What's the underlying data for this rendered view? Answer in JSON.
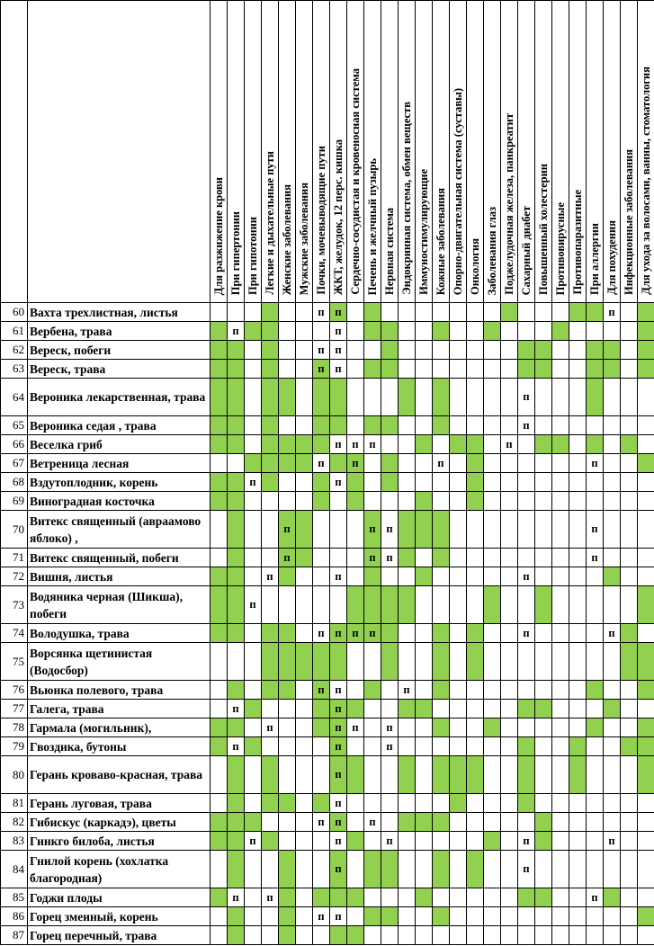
{
  "table": {
    "green_color": "#92D050",
    "mark_legend": {
      "g": "green fill",
      "p": "п on white",
      "pg": "п on green fill"
    },
    "p_symbol": "п",
    "columns": [
      "Для разжижение крови",
      "При гипертонии",
      "При гипотонии",
      "Легкие и дыхательные пути",
      "Женские заболевания",
      "Мужские заболевания",
      "Почки, мочевыводящие пути",
      "ЖКТ, желудок, 12 перс. кишка",
      "Сердечно-сосудистая и кровеносная система",
      "Печень и желчный пузырь",
      "Нервная система",
      "Эндокринная система, обмен веществ",
      "Иммуностимулирующие",
      "Кожные заболевания",
      "Опорно-двигательная система (суставы)",
      "Онкология",
      "Заболевания глаз",
      "Поджелудочная железа, панкреатит",
      "Сахарный диабет",
      "Повышенный холестерин",
      "Противовирусные",
      "Противопаразитные",
      "При аллергии",
      "Для похудения",
      "Инфекционные заболевания",
      "Для ухода за волосами, ванны, стоматология"
    ],
    "rows": [
      {
        "num": "60",
        "name": "Вахта трехлистная, листья",
        "tall": false,
        "cells": {
          "4": "g",
          "7": "p",
          "8": "pg",
          "10": "g",
          "18": "g",
          "22": "g",
          "23": "g",
          "24": "p",
          "26": "g"
        }
      },
      {
        "num": "61",
        "name": "Вербена, трава",
        "tall": false,
        "cells": {
          "1": "g",
          "2": "p",
          "3": "g",
          "4": "g",
          "8": "p",
          "10": "g",
          "11": "g",
          "14": "g",
          "17": "g",
          "21": "g",
          "26": "g"
        }
      },
      {
        "num": "62",
        "name": "Вереск, побеги",
        "tall": false,
        "cells": {
          "1": "g",
          "2": "g",
          "4": "g",
          "7": "p",
          "8": "p",
          "11": "g",
          "19": "g",
          "20": "g",
          "23": "g",
          "24": "g",
          "26": "g"
        }
      },
      {
        "num": "63",
        "name": "Вереск, трава",
        "tall": false,
        "cells": {
          "1": "g",
          "2": "g",
          "4": "g",
          "7": "pg",
          "8": "p",
          "10": "g",
          "11": "g",
          "19": "g",
          "20": "g",
          "23": "g",
          "24": "g",
          "26": "g"
        }
      },
      {
        "num": "64",
        "name": "Вероника лекарственная, трава",
        "tall": true,
        "cells": {
          "1": "g",
          "2": "g",
          "4": "g",
          "5": "g",
          "7": "g",
          "8": "g",
          "12": "g",
          "14": "g",
          "19": "p",
          "23": "g"
        }
      },
      {
        "num": "65",
        "name": "Вероника седая , трава",
        "tall": false,
        "cells": {
          "1": "g",
          "2": "g",
          "4": "g",
          "7": "g",
          "8": "g",
          "10": "g",
          "11": "g",
          "14": "g",
          "19": "p"
        }
      },
      {
        "num": "66",
        "name": "Веселка гриб",
        "tall": false,
        "cells": {
          "1": "g",
          "2": "g",
          "4": "g",
          "5": "g",
          "6": "g",
          "7": "g",
          "8": "p",
          "9": "p",
          "10": "p",
          "13": "g",
          "15": "g",
          "16": "g",
          "18": "p",
          "20": "g",
          "21": "g",
          "23": "g",
          "25": "g"
        }
      },
      {
        "num": "67",
        "name": "Ветреница лесная",
        "tall": false,
        "cells": {
          "3": "g",
          "4": "g",
          "5": "g",
          "6": "g",
          "7": "p",
          "8": "g",
          "9": "pg",
          "11": "g",
          "14": "p",
          "16": "g",
          "23": "p",
          "26": "g"
        }
      },
      {
        "num": "68",
        "name": "Вздутоплодник, корень",
        "tall": false,
        "cells": {
          "1": "g",
          "2": "g",
          "3": "p",
          "4": "g",
          "7": "g",
          "8": "p",
          "9": "g",
          "11": "g",
          "16": "g"
        }
      },
      {
        "num": "69",
        "name": "Виноградная косточка",
        "tall": false,
        "cells": {
          "1": "g",
          "2": "g",
          "7": "g",
          "9": "g",
          "13": "g",
          "16": "g"
        }
      },
      {
        "num": "70",
        "name": "Витекс священный (авраамово яблоко) ,",
        "tall": true,
        "cells": {
          "2": "g",
          "5": "pg",
          "6": "g",
          "10": "pg",
          "11": "p",
          "12": "g",
          "13": "g",
          "14": "g",
          "23": "p"
        }
      },
      {
        "num": "71",
        "name": "Витекс священный, побеги",
        "tall": false,
        "cells": {
          "2": "g",
          "5": "pg",
          "6": "g",
          "10": "pg",
          "11": "p",
          "12": "g",
          "14": "g",
          "23": "p"
        }
      },
      {
        "num": "72",
        "name": "Вишня, листья",
        "tall": false,
        "cells": {
          "1": "g",
          "2": "g",
          "4": "p",
          "5": "g",
          "8": "p",
          "10": "g",
          "13": "g",
          "19": "p",
          "24": "g"
        }
      },
      {
        "num": "73",
        "name": "Водяника черная (Шикша), побеги",
        "tall": true,
        "cells": {
          "1": "g",
          "2": "g",
          "3": "p",
          "9": "g",
          "10": "g",
          "11": "g",
          "12": "g",
          "17": "g",
          "20": "g",
          "26": "g"
        }
      },
      {
        "num": "74",
        "name": "Володушка, трава",
        "tall": false,
        "cells": {
          "1": "g",
          "2": "g",
          "4": "g",
          "5": "g",
          "7": "p",
          "8": "pg",
          "9": "pg",
          "10": "pg",
          "11": "g",
          "14": "g",
          "16": "g",
          "19": "p",
          "24": "p",
          "25": "g"
        }
      },
      {
        "num": "75",
        "name": "Ворсянка щетинистая (Водосбор)",
        "tall": true,
        "cells": {
          "4": "g",
          "5": "g",
          "6": "g",
          "7": "g",
          "8": "g",
          "11": "g",
          "14": "g",
          "16": "g",
          "25": "g",
          "26": "g"
        }
      },
      {
        "num": "76",
        "name": "Вьюнка полевого, трава",
        "tall": false,
        "cells": {
          "2": "g",
          "4": "g",
          "5": "g",
          "7": "pg",
          "8": "p",
          "10": "g",
          "12": "p",
          "14": "g",
          "23": "g",
          "26": "g"
        }
      },
      {
        "num": "77",
        "name": "Галега, трава",
        "tall": false,
        "cells": {
          "2": "p",
          "3": "g",
          "7": "g",
          "8": "pg",
          "9": "g",
          "12": "g",
          "13": "g",
          "19": "g",
          "20": "g",
          "24": "g"
        }
      },
      {
        "num": "78",
        "name": "Гармала (могильник),",
        "tall": false,
        "cells": {
          "1": "g",
          "2": "g",
          "4": "p",
          "7": "g",
          "8": "pg",
          "9": "p",
          "11": "p",
          "14": "g",
          "17": "g",
          "23": "g",
          "26": "g"
        }
      },
      {
        "num": "79",
        "name": "Гвоздика, бутоны",
        "tall": false,
        "cells": {
          "1": "g",
          "2": "p",
          "3": "g",
          "8": "pg",
          "11": "p",
          "19": "g",
          "22": "g",
          "25": "g",
          "26": "g"
        }
      },
      {
        "num": "80",
        "name": "Герань кроваво-красная, трава",
        "tall": true,
        "cells": {
          "2": "g",
          "4": "g",
          "8": "pg",
          "9": "g",
          "12": "g",
          "14": "g",
          "15": "g",
          "16": "g",
          "19": "g",
          "22": "g",
          "26": "g"
        }
      },
      {
        "num": "81",
        "name": "Герань луговая, трава",
        "tall": false,
        "cells": {
          "2": "g",
          "4": "g",
          "5": "g",
          "7": "g",
          "8": "p",
          "15": "g",
          "19": "g"
        }
      },
      {
        "num": "82",
        "name": "Гибискус (каркадэ), цветы",
        "tall": false,
        "cells": {
          "1": "g",
          "2": "g",
          "3": "g",
          "7": "p",
          "8": "pg",
          "10": "p",
          "12": "g",
          "13": "g",
          "14": "g",
          "20": "g"
        }
      },
      {
        "num": "83",
        "name": "Гинкго билоба, листья",
        "tall": false,
        "cells": {
          "1": "g",
          "2": "g",
          "3": "p",
          "4": "g",
          "8": "p",
          "9": "g",
          "11": "p",
          "17": "g",
          "19": "p",
          "20": "g",
          "24": "p"
        }
      },
      {
        "num": "84",
        "name": "Гнилой корень (хохлатка благородная)",
        "tall": true,
        "cells": {
          "2": "g",
          "5": "g",
          "8": "pg",
          "10": "g",
          "11": "g",
          "14": "g",
          "16": "g",
          "19": "p"
        }
      },
      {
        "num": "85",
        "name": "Годжи плоды",
        "tall": false,
        "cells": {
          "1": "g",
          "2": "p",
          "4": "p",
          "5": "g",
          "7": "g",
          "8": "g",
          "9": "g",
          "13": "g",
          "19": "g",
          "20": "g",
          "23": "p",
          "24": "g"
        }
      },
      {
        "num": "86",
        "name": "Горец змеиный, корень",
        "tall": false,
        "cells": {
          "2": "g",
          "5": "g",
          "7": "p",
          "8": "p",
          "10": "g",
          "11": "g",
          "14": "g",
          "26": "g"
        }
      },
      {
        "num": "87",
        "name": "Горец перечный, трава",
        "tall": false,
        "cells": {
          "2": "g",
          "5": "g",
          "8": "g",
          "9": "g"
        }
      }
    ]
  }
}
